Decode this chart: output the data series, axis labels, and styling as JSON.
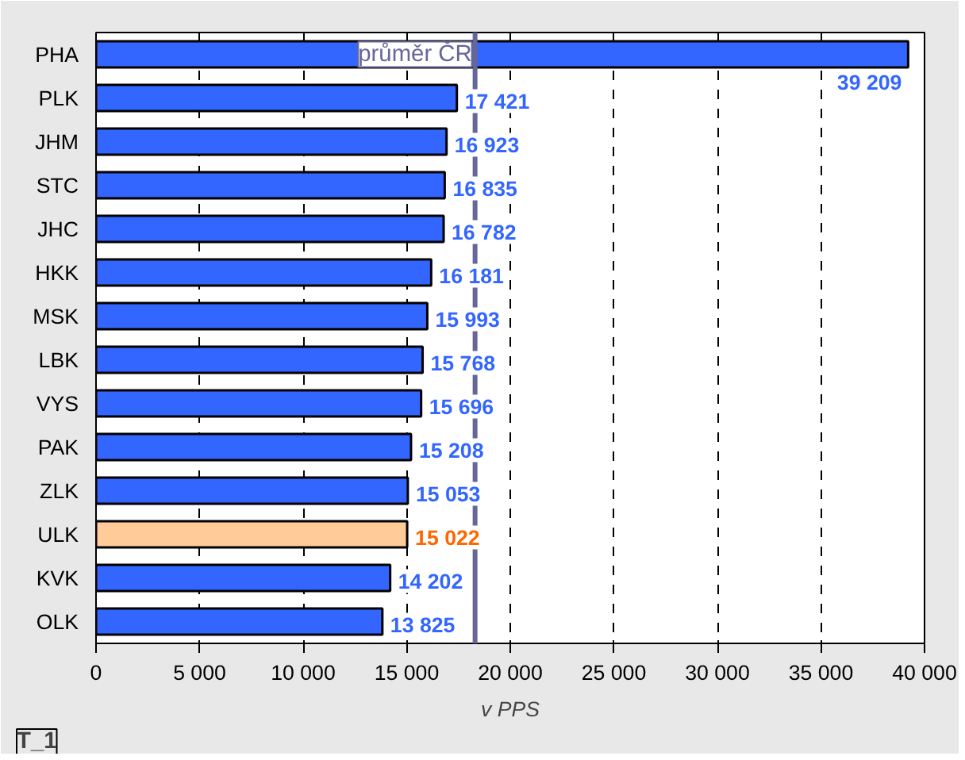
{
  "chart_data": {
    "type": "bar",
    "orientation": "horizontal",
    "xlabel": "v PPS",
    "categories": [
      "PHA",
      "PLK",
      "JHM",
      "STC",
      "JHC",
      "HKK",
      "MSK",
      "LBK",
      "VYS",
      "PAK",
      "ZLK",
      "ULK",
      "KVK",
      "OLK"
    ],
    "values": [
      39209,
      17421,
      16923,
      16835,
      16782,
      16181,
      15993,
      15768,
      15696,
      15208,
      15053,
      15022,
      14202,
      13825
    ],
    "colors": [
      "#3366ff",
      "#3366ff",
      "#3366ff",
      "#3366ff",
      "#3366ff",
      "#3366ff",
      "#3366ff",
      "#3366ff",
      "#3366ff",
      "#3366ff",
      "#3366ff",
      "#ffcc99",
      "#3366ff",
      "#3366ff"
    ],
    "value_labels": [
      "39 209",
      "17 421",
      "16 923",
      "16 835",
      "16 782",
      "16 181",
      "15 993",
      "15 768",
      "15 696",
      "15 208",
      "15 053",
      "15 022",
      "14 202",
      "13 825"
    ],
    "xlim": [
      0,
      40000
    ],
    "xticks": [
      0,
      {
        "value": 5000,
        "label": "5 000"
      },
      {
        "value": 10000,
        "label": "10 000"
      },
      {
        "value": 15000,
        "label": "15 000"
      },
      {
        "value": 20000,
        "label": "20 000"
      },
      {
        "value": 25000,
        "label": "25 000"
      },
      {
        "value": 30000,
        "label": "30 000"
      },
      {
        "value": 35000,
        "label": "35 000"
      },
      {
        "value": 40000,
        "label": "40 000"
      }
    ],
    "ref_lines": [
      {
        "axis": "x",
        "value": 18300,
        "label": "průměr ČR",
        "color": "#666699"
      }
    ],
    "annotations": [
      "T_1"
    ],
    "grid": "x"
  }
}
